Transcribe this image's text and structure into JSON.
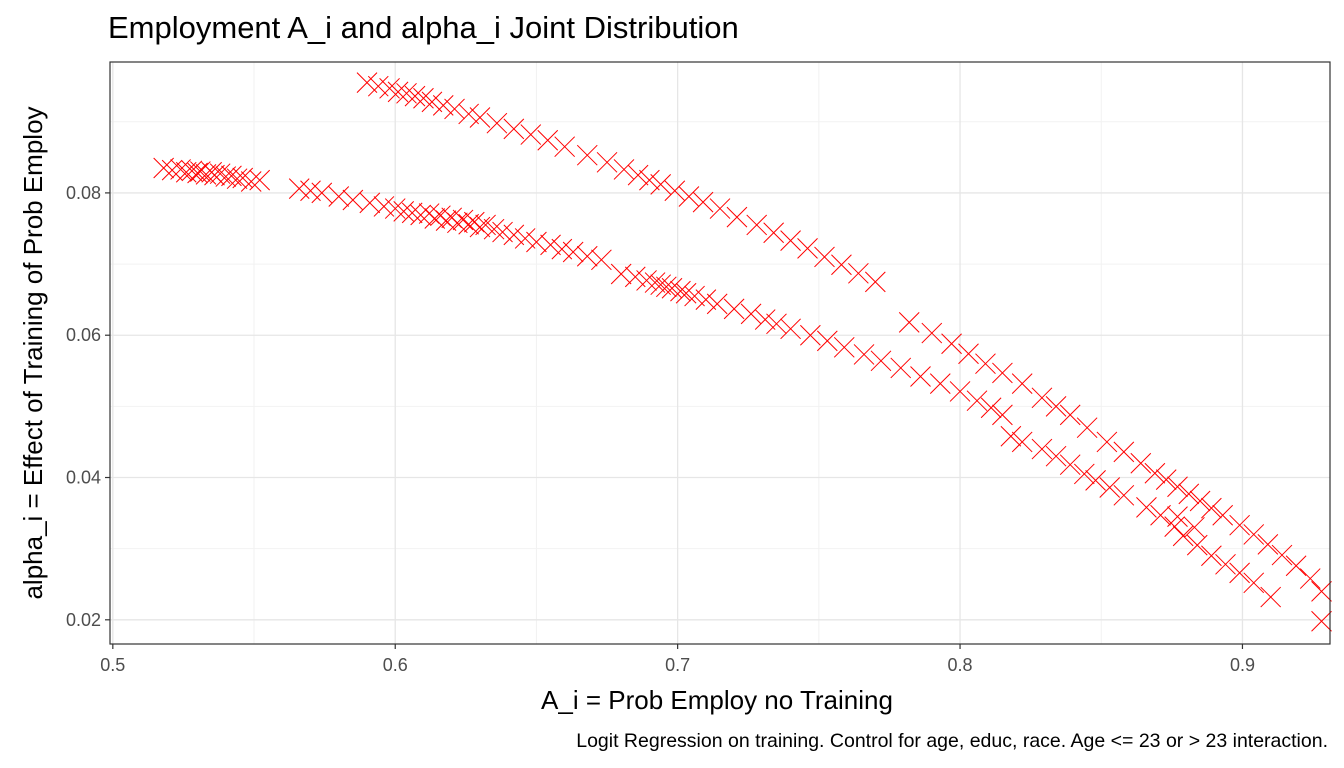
{
  "chart_data": {
    "type": "scatter",
    "title": "Employment A_i and alpha_i Joint Distribution",
    "xlabel": "A_i = Prob Employ no Training",
    "ylabel": "alpha_i = Effect of Training of Prob Employ",
    "caption": "Logit Regression on training. Control for age, educ, race. Age <= 23 or > 23 interaction.",
    "xlim": [
      0.499,
      0.931
    ],
    "ylim": [
      0.0166,
      0.0984
    ],
    "xticks": [
      0.5,
      0.6,
      0.7,
      0.8,
      0.9
    ],
    "xtick_labels": [
      "0.5",
      "0.6",
      "0.7",
      "0.8",
      "0.9"
    ],
    "yticks": [
      0.02,
      0.04,
      0.06,
      0.08
    ],
    "ytick_labels": [
      "0.02",
      "0.04",
      "0.06",
      "0.08"
    ],
    "marker": "x",
    "marker_color": "#FF0000",
    "grid": true,
    "series": [
      {
        "x": [
          0.518,
          0.521,
          0.524,
          0.526,
          0.528,
          0.53,
          0.531,
          0.533,
          0.535,
          0.536,
          0.538,
          0.54,
          0.542,
          0.544,
          0.546,
          0.549,
          0.552,
          0.566,
          0.57,
          0.574,
          0.58,
          0.585,
          0.591,
          0.596,
          0.6,
          0.603,
          0.606,
          0.609,
          0.612,
          0.614,
          0.616,
          0.618,
          0.62,
          0.622,
          0.624,
          0.626,
          0.628,
          0.63,
          0.632,
          0.635,
          0.638,
          0.642,
          0.646,
          0.65,
          0.655,
          0.659,
          0.663,
          0.668,
          0.673,
          0.68,
          0.685,
          0.689,
          0.692,
          0.694,
          0.696,
          0.698,
          0.701,
          0.703,
          0.706,
          0.71,
          0.714,
          0.72,
          0.726,
          0.731,
          0.735,
          0.74,
          0.747,
          0.753,
          0.759,
          0.766,
          0.772,
          0.779,
          0.786,
          0.793,
          0.8,
          0.806,
          0.811,
          0.815,
          0.818,
          0.822,
          0.829,
          0.834,
          0.839,
          0.844,
          0.848,
          0.853,
          0.858,
          0.866,
          0.871,
          0.876
        ],
        "y": [
          0.0835,
          0.0832,
          0.0833,
          0.0829,
          0.0831,
          0.0828,
          0.083,
          0.0826,
          0.0829,
          0.0825,
          0.0827,
          0.0823,
          0.0824,
          0.082,
          0.0821,
          0.0816,
          0.0818,
          0.0806,
          0.0803,
          0.08,
          0.0795,
          0.079,
          0.0786,
          0.0781,
          0.0778,
          0.0774,
          0.0772,
          0.0769,
          0.0771,
          0.0764,
          0.0768,
          0.0761,
          0.0765,
          0.0758,
          0.0762,
          0.0756,
          0.0759,
          0.0752,
          0.0755,
          0.0749,
          0.0745,
          0.0741,
          0.0736,
          0.0731,
          0.0727,
          0.0721,
          0.0717,
          0.0711,
          0.0706,
          0.0686,
          0.0682,
          0.0677,
          0.0674,
          0.0671,
          0.0668,
          0.0666,
          0.0662,
          0.0659,
          0.0655,
          0.065,
          0.0644,
          0.0637,
          0.063,
          0.0622,
          0.0616,
          0.0609,
          0.06,
          0.0592,
          0.0583,
          0.0573,
          0.0564,
          0.0554,
          0.0542,
          0.0532,
          0.0521,
          0.0508,
          0.0498,
          0.0488,
          0.0458,
          0.045,
          0.044,
          0.043,
          0.0418,
          0.0405,
          0.0396,
          0.0386,
          0.0375,
          0.0358,
          0.0347,
          0.0331
        ]
      },
      {
        "x": [
          0.59,
          0.594,
          0.598,
          0.601,
          0.604,
          0.607,
          0.61,
          0.613,
          0.617,
          0.621,
          0.626,
          0.63,
          0.636,
          0.642,
          0.648,
          0.654,
          0.66,
          0.668,
          0.675,
          0.681,
          0.686,
          0.69,
          0.694,
          0.699,
          0.704,
          0.709,
          0.715,
          0.721,
          0.728,
          0.734,
          0.74,
          0.746,
          0.752,
          0.758,
          0.764,
          0.77,
          0.782,
          0.79,
          0.797,
          0.803,
          0.809,
          0.815,
          0.822,
          0.829,
          0.834,
          0.839,
          0.845,
          0.852,
          0.858,
          0.864,
          0.869,
          0.873,
          0.877,
          0.881,
          0.885,
          0.889,
          0.893,
          0.899,
          0.904,
          0.909,
          0.914,
          0.919,
          0.924,
          0.928
        ],
        "y": [
          0.0955,
          0.095,
          0.0947,
          0.0942,
          0.094,
          0.0936,
          0.0933,
          0.0928,
          0.0923,
          0.0918,
          0.0911,
          0.0906,
          0.0898,
          0.089,
          0.0882,
          0.0874,
          0.0865,
          0.0853,
          0.0843,
          0.0833,
          0.0825,
          0.0818,
          0.0812,
          0.0803,
          0.0795,
          0.0787,
          0.0778,
          0.0766,
          0.0755,
          0.0744,
          0.0733,
          0.0722,
          0.071,
          0.0699,
          0.0687,
          0.0675,
          0.0618,
          0.0603,
          0.0588,
          0.0574,
          0.056,
          0.0547,
          0.0532,
          0.0512,
          0.05,
          0.0488,
          0.047,
          0.045,
          0.0436,
          0.042,
          0.0406,
          0.0397,
          0.0387,
          0.0377,
          0.0367,
          0.0357,
          0.0347,
          0.0333,
          0.032,
          0.0306,
          0.0291,
          0.0276,
          0.0258,
          0.024
        ]
      },
      {
        "x": [
          0.879,
          0.884,
          0.889,
          0.894,
          0.899,
          0.904,
          0.91,
          0.928,
          0.877,
          0.883
        ],
        "y": [
          0.0318,
          0.0305,
          0.029,
          0.0278,
          0.0266,
          0.0252,
          0.0232,
          0.0198,
          0.0345,
          0.033
        ]
      }
    ]
  }
}
